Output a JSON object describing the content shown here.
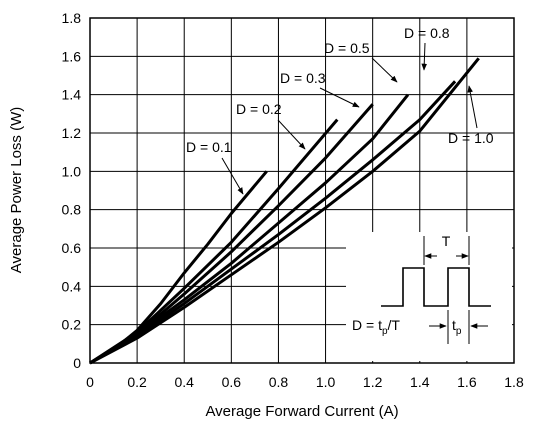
{
  "chart_data": {
    "type": "line",
    "xlabel": "Average Forward Current (A)",
    "ylabel": "Average Power Loss (W)",
    "xlim": [
      0,
      1.8
    ],
    "ylim": [
      0,
      1.8
    ],
    "x_ticks": [
      "0",
      "0.2",
      "0.4",
      "0.6",
      "0.8",
      "1.0",
      "1.2",
      "1.4",
      "1.6",
      "1.8"
    ],
    "y_ticks": [
      "0",
      "0.2",
      "0.4",
      "0.6",
      "0.8",
      "1.0",
      "1.2",
      "1.4",
      "1.6",
      "1.8"
    ],
    "grid": true,
    "series": [
      {
        "name": "D = 0.1",
        "x": [
          0,
          0.1,
          0.2,
          0.3,
          0.4,
          0.5,
          0.6,
          0.75
        ],
        "y": [
          0,
          0.07,
          0.17,
          0.31,
          0.47,
          0.62,
          0.78,
          1.0
        ]
      },
      {
        "name": "D = 0.2",
        "x": [
          0,
          0.2,
          0.4,
          0.6,
          0.8,
          1.05
        ],
        "y": [
          0,
          0.16,
          0.39,
          0.63,
          0.91,
          1.27
        ]
      },
      {
        "name": "D = 0.3",
        "x": [
          0,
          0.2,
          0.4,
          0.6,
          0.8,
          1.0,
          1.2
        ],
        "y": [
          0,
          0.15,
          0.36,
          0.58,
          0.82,
          1.07,
          1.35
        ]
      },
      {
        "name": "D = 0.5",
        "x": [
          0,
          0.2,
          0.4,
          0.6,
          0.8,
          1.0,
          1.2,
          1.35
        ],
        "y": [
          0,
          0.15,
          0.33,
          0.52,
          0.73,
          0.94,
          1.17,
          1.4
        ]
      },
      {
        "name": "D = 0.8",
        "x": [
          0,
          0.2,
          0.4,
          0.6,
          0.8,
          1.0,
          1.2,
          1.4,
          1.55
        ],
        "y": [
          0,
          0.14,
          0.31,
          0.49,
          0.67,
          0.86,
          1.06,
          1.27,
          1.47
        ]
      },
      {
        "name": "D = 1.0",
        "x": [
          0,
          0.2,
          0.4,
          0.6,
          0.8,
          1.0,
          1.2,
          1.4,
          1.65
        ],
        "y": [
          0,
          0.13,
          0.29,
          0.46,
          0.63,
          0.81,
          1.0,
          1.21,
          1.59
        ]
      }
    ],
    "annotations": {
      "d01": "D = 0.1",
      "d02": "D = 0.2",
      "d03": "D = 0.3",
      "d05": "D = 0.5",
      "d08": "D = 0.8",
      "d10": "D = 1.0"
    },
    "inset": {
      "period_label": "T",
      "formula_prefix": "D = t",
      "formula_sub": "p",
      "formula_suffix": "/T",
      "tp_main": "t",
      "tp_sub": "p"
    }
  }
}
